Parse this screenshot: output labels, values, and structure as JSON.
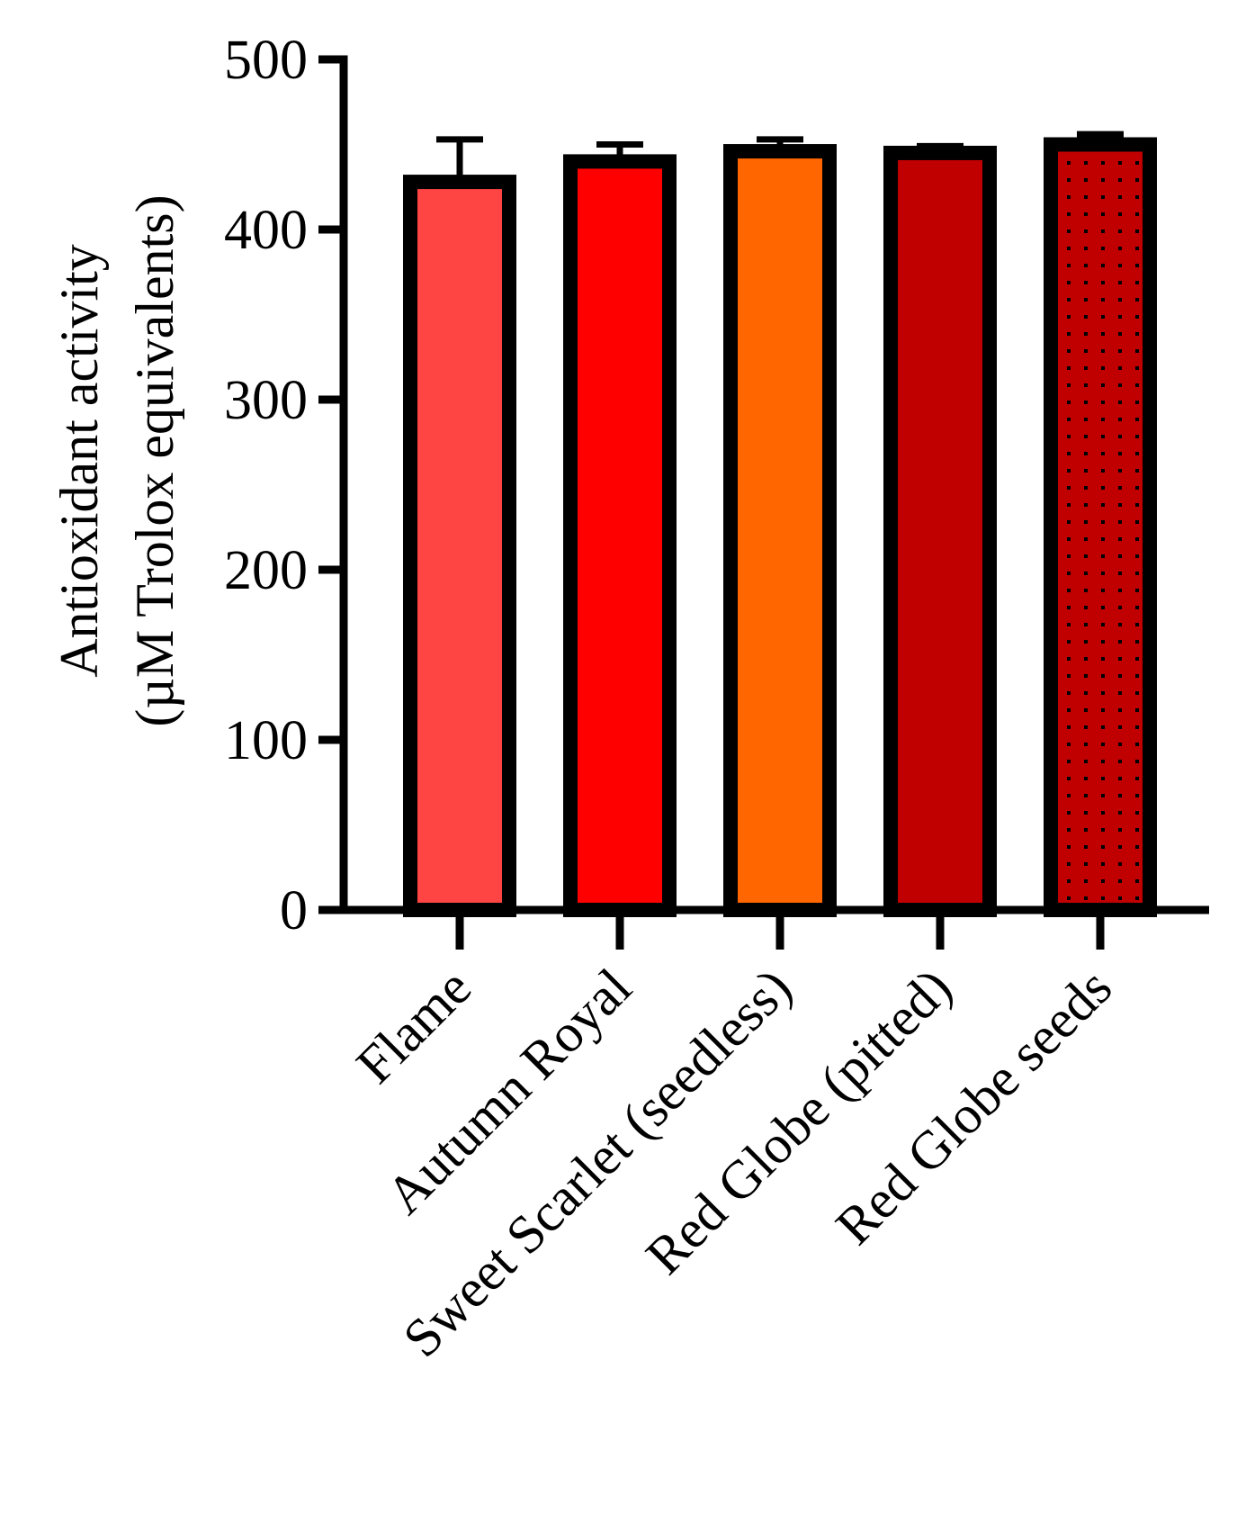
{
  "chart_data": {
    "type": "bar",
    "title": "",
    "xlabel": "",
    "ylabel_line1": "Antioxidant activity",
    "ylabel_line2": "(µM Trolox equivalents)",
    "ylim": [
      0,
      500
    ],
    "yticks": [
      0,
      100,
      200,
      300,
      400,
      500
    ],
    "yticks_labels": [
      "0",
      "100",
      "200",
      "300",
      "400",
      "500"
    ],
    "grid": false,
    "legend": "none",
    "categories": [
      "Flame",
      "Autumn Royal",
      "Sweet Scarlet (seedless)",
      "Red Globe (pitted)",
      "Red Globe seeds"
    ],
    "values": [
      428,
      440,
      446,
      445,
      450
    ],
    "errors": [
      25,
      10,
      7,
      4,
      6
    ],
    "colors": [
      "#ff4444",
      "#ff0000",
      "#ff6600",
      "#c00000",
      "#c00000"
    ],
    "patterns": [
      "none",
      "none",
      "none",
      "none",
      "dots"
    ]
  }
}
